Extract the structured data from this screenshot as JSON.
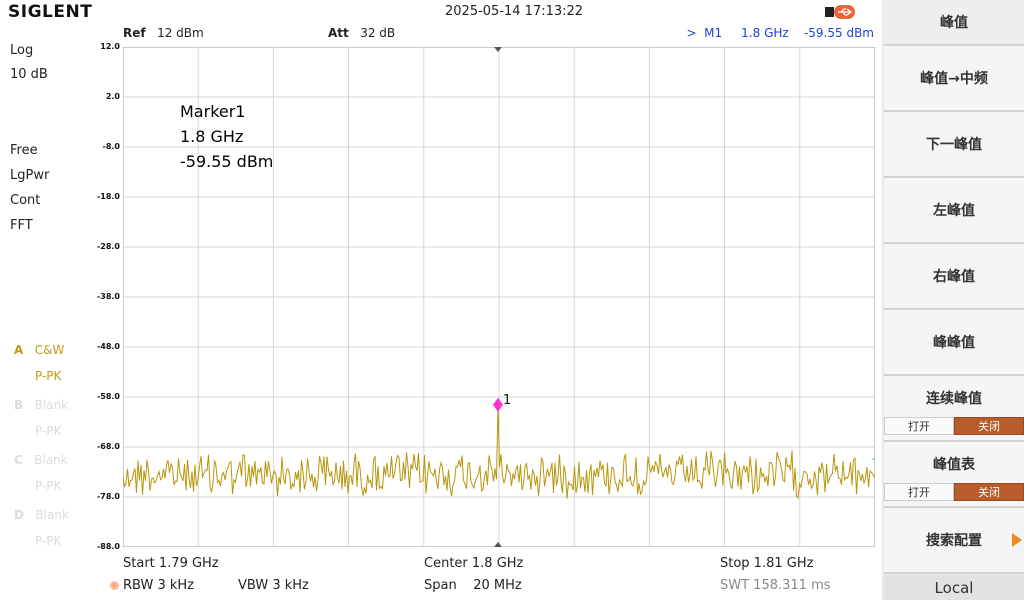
{
  "header": {
    "brand": "SIGLENT",
    "datetime": "2025-05-14 17:13:22",
    "ref_label": "Ref",
    "ref_value": "12 dBm",
    "att_label": "Att",
    "att_value": "32 dB",
    "marker_readout": ">  M1     1.8 GHz    -59.55 dBm"
  },
  "left": {
    "scale_type": "Log",
    "scale_div": "10 dB",
    "trigger": "Free",
    "avg_type": "LgPwr",
    "sweep_mode": "Cont",
    "sweep_type": "FFT",
    "traces": [
      {
        "letter": "A",
        "mode": "C&W",
        "det": "P-PK",
        "active": true
      },
      {
        "letter": "B",
        "mode": "Blank",
        "det": "P-PK",
        "active": false
      },
      {
        "letter": "C",
        "mode": "Blank",
        "det": "P-PK",
        "active": false
      },
      {
        "letter": "D",
        "mode": "Blank",
        "det": "P-PK",
        "active": false
      }
    ]
  },
  "plot": {
    "y_labels": [
      "12.0",
      "2.0",
      "-8.0",
      "-18.0",
      "-28.0",
      "-38.0",
      "-48.0",
      "-58.0",
      "-68.0",
      "-78.0",
      "-88.0"
    ],
    "marker_box": {
      "name": "Marker1",
      "freq": "1.8 GHz",
      "level": "-59.55 dBm"
    },
    "marker_label": "1",
    "trace_color": "#b8960c",
    "marker_color": "#ff33cc"
  },
  "bottom": {
    "start": "Start  1.79 GHz",
    "center": "Center  1.8 GHz",
    "stop": "Stop  1.81 GHz",
    "rbw": "RBW  3 kHz",
    "vbw": "VBW  3 kHz",
    "span": "Span    20 MHz",
    "swt": "SWT  158.311 ms"
  },
  "menu": {
    "title": "峰值",
    "items": [
      "峰值→中频",
      "下一峰值",
      "左峰值",
      "右峰值",
      "峰峰值"
    ],
    "continuous_peak": {
      "label": "连续峰值",
      "off": "打开",
      "on": "关闭"
    },
    "peak_table": {
      "label": "峰值表",
      "off": "打开",
      "on": "关闭"
    },
    "search_config": "搜索配置",
    "local": "Local"
  }
}
